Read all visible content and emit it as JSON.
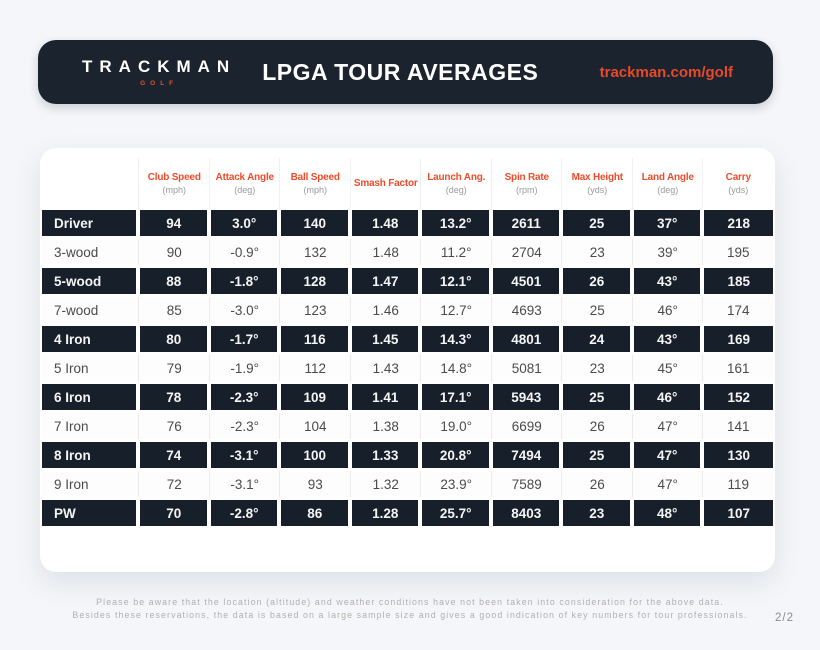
{
  "header": {
    "logo_brand": "TRACKMAN",
    "logo_sub": "GOLF",
    "title": "LPGA TOUR AVERAGES",
    "url": "trackman.com/golf"
  },
  "table": {
    "columns": [
      {
        "label": "Club Speed",
        "unit": "(mph)"
      },
      {
        "label": "Attack Angle",
        "unit": "(deg)"
      },
      {
        "label": "Ball Speed",
        "unit": "(mph)"
      },
      {
        "label": "Smash Factor",
        "unit": ""
      },
      {
        "label": "Launch Ang.",
        "unit": "(deg)"
      },
      {
        "label": "Spin Rate",
        "unit": "(rpm)"
      },
      {
        "label": "Max Height",
        "unit": "(yds)"
      },
      {
        "label": "Land Angle",
        "unit": "(deg)"
      },
      {
        "label": "Carry",
        "unit": "(yds)"
      }
    ],
    "rows": [
      {
        "club": "Driver",
        "dark": true,
        "values": [
          "94",
          "3.0°",
          "140",
          "1.48",
          "13.2°",
          "2611",
          "25",
          "37°",
          "218"
        ]
      },
      {
        "club": "3-wood",
        "dark": false,
        "values": [
          "90",
          "-0.9°",
          "132",
          "1.48",
          "11.2°",
          "2704",
          "23",
          "39°",
          "195"
        ]
      },
      {
        "club": "5-wood",
        "dark": true,
        "values": [
          "88",
          "-1.8°",
          "128",
          "1.47",
          "12.1°",
          "4501",
          "26",
          "43°",
          "185"
        ]
      },
      {
        "club": "7-wood",
        "dark": false,
        "values": [
          "85",
          "-3.0°",
          "123",
          "1.46",
          "12.7°",
          "4693",
          "25",
          "46°",
          "174"
        ]
      },
      {
        "club": "4 Iron",
        "dark": true,
        "values": [
          "80",
          "-1.7°",
          "116",
          "1.45",
          "14.3°",
          "4801",
          "24",
          "43°",
          "169"
        ]
      },
      {
        "club": "5 Iron",
        "dark": false,
        "values": [
          "79",
          "-1.9°",
          "112",
          "1.43",
          "14.8°",
          "5081",
          "23",
          "45°",
          "161"
        ]
      },
      {
        "club": "6 Iron",
        "dark": true,
        "values": [
          "78",
          "-2.3°",
          "109",
          "1.41",
          "17.1°",
          "5943",
          "25",
          "46°",
          "152"
        ]
      },
      {
        "club": "7 Iron",
        "dark": false,
        "values": [
          "76",
          "-2.3°",
          "104",
          "1.38",
          "19.0°",
          "6699",
          "26",
          "47°",
          "141"
        ]
      },
      {
        "club": "8 Iron",
        "dark": true,
        "values": [
          "74",
          "-3.1°",
          "100",
          "1.33",
          "20.8°",
          "7494",
          "25",
          "47°",
          "130"
        ]
      },
      {
        "club": "9 Iron",
        "dark": false,
        "values": [
          "72",
          "-3.1°",
          "93",
          "1.32",
          "23.9°",
          "7589",
          "26",
          "47°",
          "119"
        ]
      },
      {
        "club": "PW",
        "dark": true,
        "values": [
          "70",
          "-2.8°",
          "86",
          "1.28",
          "25.7°",
          "8403",
          "23",
          "48°",
          "107"
        ]
      }
    ]
  },
  "footer": {
    "line1": "Please be aware that the location (altitude) and weather conditions have not been taken into consideration for the above data.",
    "line2": "Besides these reservations, the data is based on a large sample size and gives a good indication of key numbers for tour professionals.",
    "page": "2/2"
  },
  "colors": {
    "accent": "#e8492a",
    "dark_row": "#171f2a",
    "header_bar": "#1b232e",
    "background": "#f4f6f9"
  }
}
